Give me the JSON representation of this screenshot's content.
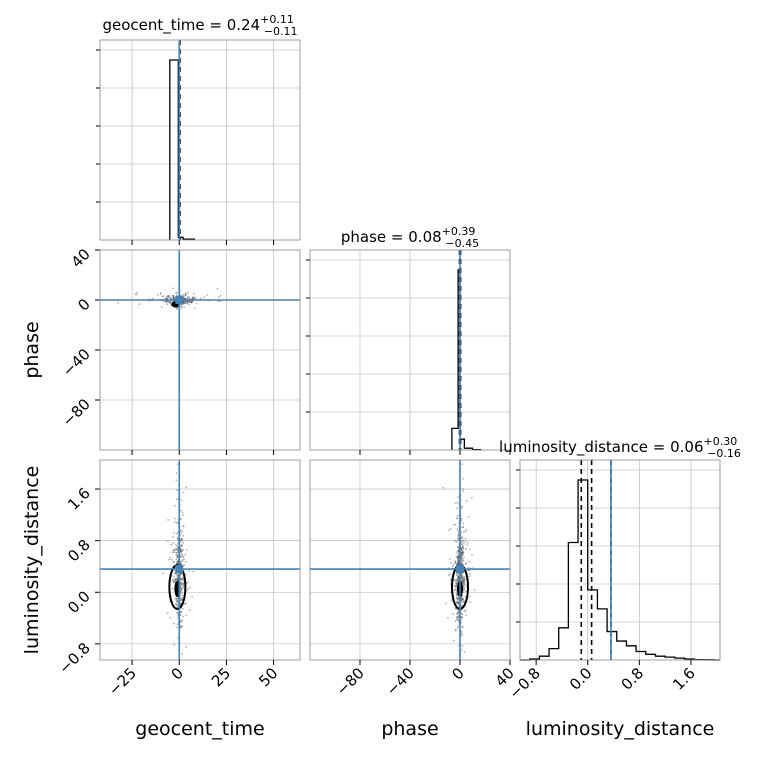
{
  "chart_data": {
    "type": "corner",
    "parameters": [
      "geocent_time",
      "phase",
      "luminosity_distance"
    ],
    "axis_labels": {
      "geocent_time": "geocent_time",
      "phase": "phase",
      "luminosity_distance": "luminosity_distance"
    },
    "ranges": {
      "geocent_time": [
        -42,
        64
      ],
      "phase": [
        -120,
        40
      ],
      "luminosity_distance": [
        -1.05,
        2.05
      ]
    },
    "ticks": {
      "geocent_time": [
        -25,
        0,
        25,
        50
      ],
      "phase": [
        -80,
        -40,
        0,
        40
      ],
      "luminosity_distance": [
        -0.8,
        0.0,
        0.8,
        1.6
      ]
    },
    "tick_labels": {
      "geocent_time": [
        "−25",
        "0",
        "25",
        "50"
      ],
      "phase": [
        "−80",
        "−40",
        "0",
        "40"
      ],
      "luminosity_distance": [
        "−0.8",
        "0.0",
        "0.8",
        "1.6"
      ]
    },
    "truths": {
      "geocent_time": 0,
      "phase": 0,
      "luminosity_distance": 0.36
    },
    "titles": [
      {
        "param": "geocent_time",
        "name": "geocent_time",
        "median": "0.24",
        "plus": "+0.11",
        "minus": "−0.11"
      },
      {
        "param": "phase",
        "name": "phase",
        "median": "0.08",
        "plus": "+0.39",
        "minus": "−0.45"
      },
      {
        "param": "luminosity_distance",
        "name": "luminosity_distance",
        "median": "0.06",
        "plus": "+0.30",
        "minus": "−0.16"
      }
    ],
    "histograms": {
      "geocent_time": {
        "edges": [
          -5,
          -0.5,
          2.0,
          8
        ],
        "counts": [
          1.0,
          0.015,
          0.005
        ],
        "quantiles": [
          0.13,
          0.24,
          0.35
        ]
      },
      "phase": {
        "edges": [
          -6.5,
          -1.5,
          0.0,
          3.5,
          10.0,
          16.5
        ],
        "counts": [
          0.12,
          1.0,
          0.06,
          0.01,
          0.002
        ],
        "quantiles": [
          -0.37,
          0.08,
          0.47
        ]
      },
      "luminosity_distance": {
        "edges": [
          -1.05,
          -0.9,
          -0.75,
          -0.6,
          -0.45,
          -0.3,
          -0.15,
          0.0,
          0.15,
          0.3,
          0.45,
          0.6,
          0.75,
          0.9,
          1.05,
          1.2,
          1.35,
          1.5,
          1.65,
          1.8,
          1.95,
          2.05
        ],
        "counts": [
          0.0,
          0.005,
          0.02,
          0.06,
          0.17,
          0.62,
          0.95,
          0.37,
          0.27,
          0.15,
          0.1,
          0.075,
          0.045,
          0.03,
          0.02,
          0.015,
          0.01,
          0.005,
          0.002,
          0.001,
          0.0
        ],
        "quantiles": [
          -0.1,
          0.06,
          0.36
        ]
      }
    },
    "scatter_2d": [
      {
        "x": "geocent_time",
        "y": "phase",
        "x_spread": 4.0,
        "y_spread": 2.0,
        "n_points": 300
      },
      {
        "x": "geocent_time",
        "y": "luminosity_distance",
        "x_spread": 1.2,
        "y_spread": 0.35,
        "n_points": 450
      },
      {
        "x": "phase",
        "y": "luminosity_distance",
        "x_spread": 1.8,
        "y_spread": 0.35,
        "n_points": 600
      }
    ],
    "grid": true,
    "colors": {
      "truth": "#4682b4",
      "hist": "#000000",
      "points": "#555555",
      "grid": "#b0b0b0"
    }
  }
}
